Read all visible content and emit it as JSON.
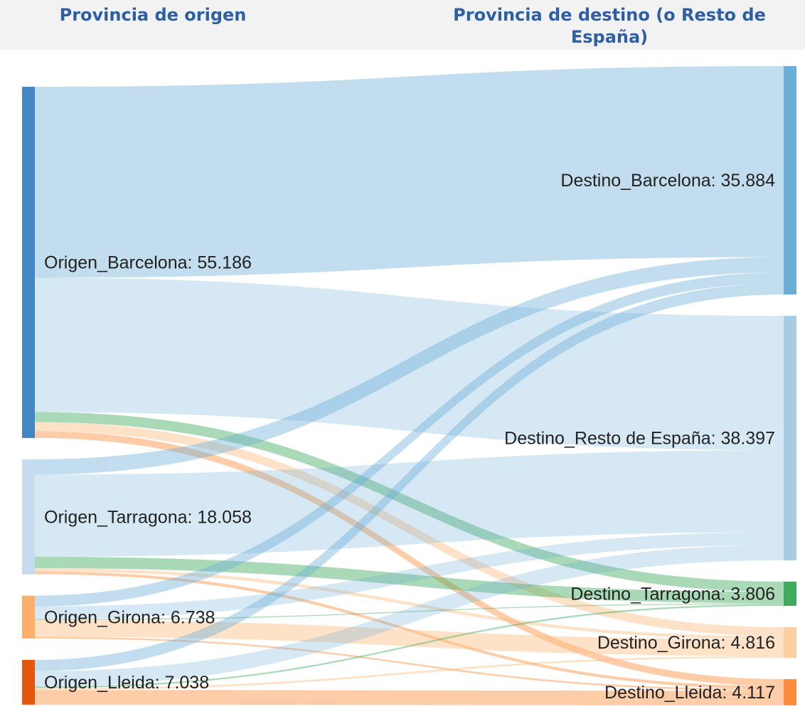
{
  "chart_data": {
    "type": "sankey",
    "column_titles": [
      "Provincia de origen",
      "Provincia de destino (o Resto de España)"
    ],
    "nodes": [
      {
        "label": "Origen_Barcelona: 55.186",
        "value": 55.186,
        "color": "#3f88c5",
        "column": 0
      },
      {
        "label": "Origen_Tarragona: 18.058",
        "value": 18.058,
        "color": "#c6dbef",
        "column": 0
      },
      {
        "label": "Origen_Girona: 6.738",
        "value": 6.738,
        "color": "#fdae6b",
        "column": 0
      },
      {
        "label": "Origen_Lleida: 7.038",
        "value": 7.038,
        "color": "#e6550d",
        "column": 0
      },
      {
        "label": "Destino_Barcelona: 35.884",
        "value": 35.884,
        "color": "#6baed6",
        "column": 1
      },
      {
        "label": "Destino_Resto de España: 38.397",
        "value": 38.397,
        "color": "#a6cbe3",
        "column": 1
      },
      {
        "label": "Destino_Tarragona: 3.806",
        "value": 3.806,
        "color": "#41ab5d",
        "column": 1
      },
      {
        "label": "Destino_Girona: 4.816",
        "value": 4.816,
        "color": "#fdd0a2",
        "column": 1
      },
      {
        "label": "Destino_Lleida: 4.117",
        "value": 4.117,
        "color": "#fd8d3c",
        "column": 1
      }
    ],
    "links": [
      {
        "source": 0,
        "target": 4,
        "value": 30.0,
        "color": "rgba(107,174,214,0.42)"
      },
      {
        "source": 0,
        "target": 5,
        "value": 21.1,
        "color": "rgba(107,174,214,0.28)"
      },
      {
        "source": 0,
        "target": 6,
        "value": 1.6,
        "color": "rgba(65,171,93,0.45)"
      },
      {
        "source": 0,
        "target": 7,
        "value": 1.4,
        "color": "rgba(253,190,130,0.45)"
      },
      {
        "source": 0,
        "target": 8,
        "value": 1.086,
        "color": "rgba(253,141,60,0.45)"
      },
      {
        "source": 1,
        "target": 4,
        "value": 2.4,
        "color": "rgba(107,174,214,0.42)"
      },
      {
        "source": 1,
        "target": 5,
        "value": 12.9,
        "color": "rgba(107,174,214,0.28)"
      },
      {
        "source": 1,
        "target": 6,
        "value": 1.8,
        "color": "rgba(65,171,93,0.45)"
      },
      {
        "source": 1,
        "target": 7,
        "value": 0.5,
        "color": "rgba(253,190,130,0.45)"
      },
      {
        "source": 1,
        "target": 8,
        "value": 0.458,
        "color": "rgba(253,141,60,0.45)"
      },
      {
        "source": 2,
        "target": 4,
        "value": 1.7,
        "color": "rgba(107,174,214,0.42)"
      },
      {
        "source": 2,
        "target": 5,
        "value": 1.999,
        "color": "rgba(107,174,214,0.28)"
      },
      {
        "source": 2,
        "target": 6,
        "value": 0.15,
        "color": "rgba(65,171,93,0.45)"
      },
      {
        "source": 2,
        "target": 7,
        "value": 2.616,
        "color": "rgba(253,190,130,0.45)"
      },
      {
        "source": 2,
        "target": 8,
        "value": 0.273,
        "color": "rgba(253,141,60,0.45)"
      },
      {
        "source": 3,
        "target": 4,
        "value": 1.784,
        "color": "rgba(107,174,214,0.42)"
      },
      {
        "source": 3,
        "target": 5,
        "value": 2.398,
        "color": "rgba(107,174,214,0.28)"
      },
      {
        "source": 3,
        "target": 6,
        "value": 0.256,
        "color": "rgba(65,171,93,0.45)"
      },
      {
        "source": 3,
        "target": 7,
        "value": 0.3,
        "color": "rgba(253,190,130,0.45)"
      },
      {
        "source": 3,
        "target": 8,
        "value": 2.3,
        "color": "rgba(253,141,60,0.45)"
      }
    ]
  }
}
